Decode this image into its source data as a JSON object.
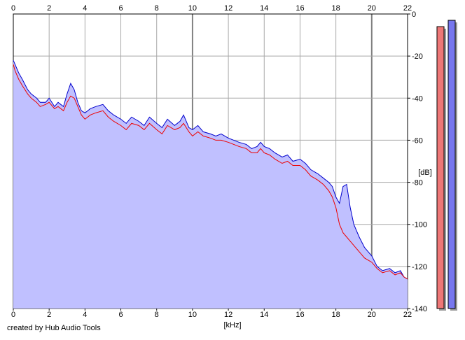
{
  "credit": "created by Hub Audio Tools",
  "chart_data": {
    "type": "area",
    "xlabel": "[kHz]",
    "ylabel": "[dB]",
    "xlim": [
      0,
      22
    ],
    "ylim": [
      -140,
      0
    ],
    "x_ticks": [
      0,
      2,
      4,
      6,
      8,
      10,
      12,
      14,
      16,
      18,
      20,
      22
    ],
    "y_ticks": [
      0,
      -20,
      -40,
      -60,
      -80,
      -100,
      -120,
      -140
    ],
    "grid": true,
    "colors": {
      "fill": "#c0c0ff",
      "blue": "#0000cc",
      "red": "#ee0000",
      "grid": "#c8c8c8",
      "major_grid": "#808080"
    },
    "series": [
      {
        "color": "#0000cc",
        "x": [
          0.0,
          0.1,
          0.3,
          0.5,
          0.8,
          1.0,
          1.3,
          1.5,
          1.8,
          2.0,
          2.3,
          2.5,
          2.8,
          3.0,
          3.2,
          3.4,
          3.6,
          3.8,
          4.0,
          4.3,
          4.6,
          5.0,
          5.3,
          5.6,
          6.0,
          6.3,
          6.6,
          7.0,
          7.3,
          7.6,
          8.0,
          8.3,
          8.6,
          9.0,
          9.3,
          9.5,
          9.8,
          10.0,
          10.3,
          10.6,
          11.0,
          11.3,
          11.6,
          12.0,
          12.3,
          12.6,
          13.0,
          13.3,
          13.6,
          13.8,
          14.0,
          14.3,
          14.6,
          15.0,
          15.3,
          15.6,
          16.0,
          16.3,
          16.6,
          17.0,
          17.3,
          17.6,
          17.8,
          18.0,
          18.2,
          18.4,
          18.6,
          18.8,
          19.0,
          19.3,
          19.6,
          20.0,
          20.3,
          20.6,
          21.0,
          21.3,
          21.6,
          21.8,
          22.0
        ],
        "values": [
          -22,
          -24,
          -28,
          -31,
          -36,
          -38,
          -40,
          -42,
          -42,
          -40,
          -44,
          -42,
          -44,
          -38,
          -33,
          -36,
          -42,
          -46,
          -47,
          -45,
          -44,
          -43,
          -46,
          -48,
          -50,
          -52,
          -49,
          -51,
          -53,
          -49,
          -52,
          -54,
          -50,
          -53,
          -51,
          -48,
          -54,
          -55,
          -53,
          -56,
          -57,
          -58,
          -57,
          -59,
          -60,
          -61,
          -62,
          -64,
          -63,
          -61,
          -63,
          -64,
          -66,
          -68,
          -67,
          -70,
          -69,
          -71,
          -74,
          -76,
          -78,
          -80,
          -82,
          -87,
          -90,
          -82,
          -81,
          -92,
          -100,
          -106,
          -111,
          -115,
          -120,
          -122,
          -121,
          -123,
          -122,
          -125,
          -126
        ]
      },
      {
        "color": "#ee0000",
        "x": [
          0.0,
          0.1,
          0.3,
          0.5,
          0.8,
          1.0,
          1.3,
          1.5,
          1.8,
          2.0,
          2.3,
          2.5,
          2.8,
          3.0,
          3.2,
          3.4,
          3.6,
          3.8,
          4.0,
          4.3,
          4.6,
          5.0,
          5.3,
          5.6,
          6.0,
          6.3,
          6.6,
          7.0,
          7.3,
          7.6,
          8.0,
          8.3,
          8.6,
          9.0,
          9.3,
          9.5,
          9.8,
          10.0,
          10.3,
          10.6,
          11.0,
          11.3,
          11.6,
          12.0,
          12.3,
          12.6,
          13.0,
          13.3,
          13.6,
          13.8,
          14.0,
          14.3,
          14.6,
          15.0,
          15.3,
          15.6,
          16.0,
          16.3,
          16.6,
          17.0,
          17.3,
          17.6,
          17.8,
          18.0,
          18.2,
          18.4,
          18.6,
          18.8,
          19.0,
          19.3,
          19.6,
          20.0,
          20.3,
          20.6,
          21.0,
          21.3,
          21.6,
          21.8,
          22.0
        ],
        "values": [
          -24,
          -27,
          -31,
          -34,
          -38,
          -40,
          -42,
          -44,
          -43,
          -42,
          -45,
          -44,
          -46,
          -42,
          -39,
          -40,
          -44,
          -48,
          -50,
          -48,
          -47,
          -46,
          -49,
          -51,
          -53,
          -55,
          -52,
          -53,
          -55,
          -52,
          -55,
          -57,
          -53,
          -55,
          -54,
          -52,
          -56,
          -58,
          -56,
          -58,
          -59,
          -60,
          -60,
          -61,
          -62,
          -63,
          -64,
          -66,
          -66,
          -64,
          -66,
          -67,
          -69,
          -71,
          -70,
          -72,
          -72,
          -74,
          -77,
          -79,
          -81,
          -84,
          -87,
          -92,
          -100,
          -104,
          -106,
          -108,
          -110,
          -113,
          -116,
          -118,
          -121,
          -123,
          -122,
          -124,
          -123,
          -125,
          -126
        ]
      }
    ],
    "level_meters": [
      {
        "color": "#ee7777",
        "value": -6
      },
      {
        "color": "#7777ee",
        "value": -3
      }
    ]
  }
}
